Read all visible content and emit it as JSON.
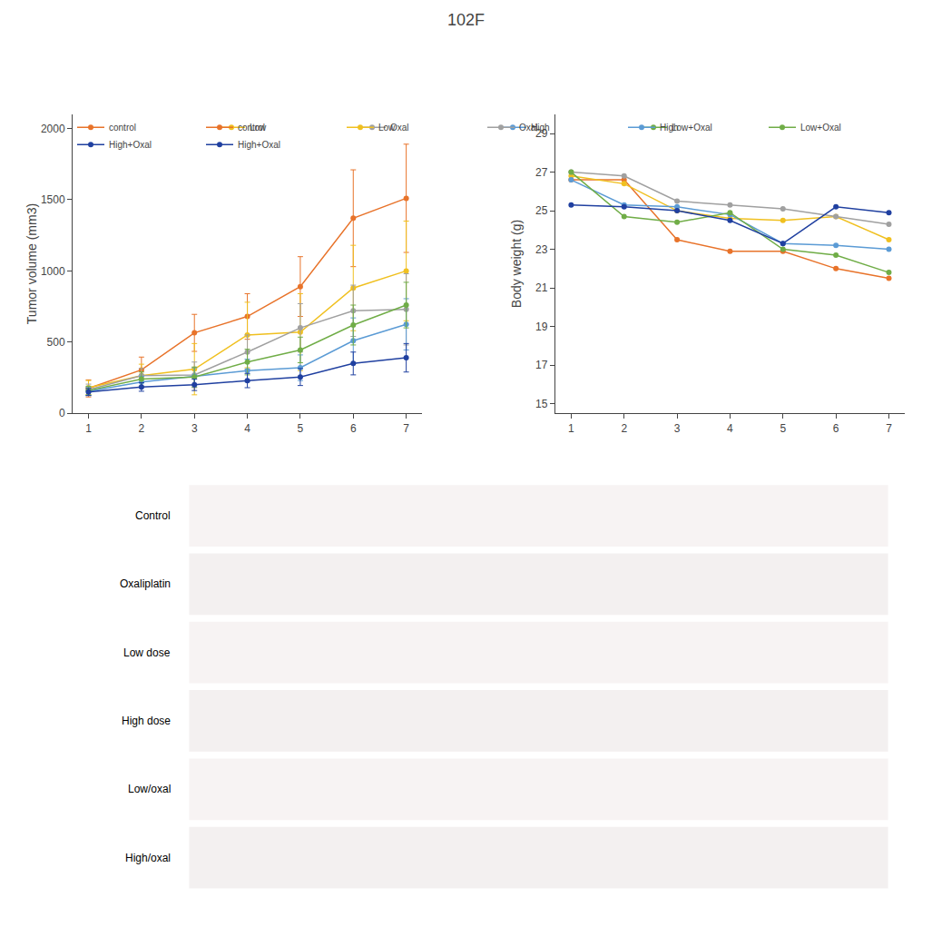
{
  "title": "102F",
  "annotations": [
    "Control",
    "Oxaliplatin",
    "Low dose",
    "High dose",
    "Low/oxal",
    "High/oxal"
  ],
  "chart_data": [
    {
      "type": "line",
      "marker": "circle",
      "grid": false,
      "legend": "upper left",
      "x": [
        1,
        2,
        3,
        4,
        5,
        6,
        7
      ],
      "xlim": [
        0.7,
        7.3
      ],
      "xticks": [
        1,
        2,
        3,
        4,
        5,
        6,
        7
      ],
      "ylabel": "Tumor volume (mm3)",
      "ylim": [
        0,
        2100
      ],
      "yticks": [
        0,
        500,
        1000,
        1500,
        2000
      ],
      "series": [
        {
          "name": "control",
          "color": "#E8732A",
          "values": [
            175,
            305,
            565,
            680,
            890,
            1370,
            1510
          ],
          "errors": [
            60,
            90,
            130,
            160,
            210,
            340,
            380
          ]
        },
        {
          "name": "Low",
          "color": "#F0C020",
          "values": [
            180,
            265,
            310,
            550,
            570,
            880,
            1000
          ],
          "errors": [
            50,
            80,
            180,
            230,
            270,
            300,
            350
          ]
        },
        {
          "name": "Oxal",
          "color": "#A0A0A0",
          "values": [
            165,
            265,
            270,
            430,
            600,
            720,
            730
          ],
          "errors": [
            40,
            50,
            90,
            120,
            170,
            180,
            250
          ]
        },
        {
          "name": "High",
          "color": "#5B9BD5",
          "values": [
            155,
            220,
            260,
            300,
            320,
            510,
            625
          ],
          "errors": [
            30,
            40,
            60,
            80,
            90,
            160,
            180
          ]
        },
        {
          "name": "Low+Oxal",
          "color": "#70AD47",
          "values": [
            160,
            240,
            255,
            360,
            445,
            620,
            760
          ],
          "errors": [
            30,
            50,
            70,
            90,
            90,
            140,
            160
          ]
        },
        {
          "name": "High+Oxal",
          "color": "#2040A0",
          "values": [
            150,
            185,
            200,
            230,
            255,
            350,
            390
          ],
          "errors": [
            25,
            30,
            40,
            50,
            60,
            80,
            100
          ]
        }
      ]
    },
    {
      "type": "line",
      "marker": "circle",
      "grid": false,
      "legend": "upper right",
      "x": [
        1,
        2,
        3,
        4,
        5,
        6,
        7
      ],
      "xlim": [
        0.7,
        7.3
      ],
      "xticks": [
        1,
        2,
        3,
        4,
        5,
        6,
        7
      ],
      "ylabel": "Body weight (g)",
      "ylim": [
        14.5,
        30
      ],
      "yticks": [
        15,
        17,
        19,
        21,
        23,
        25,
        27,
        29
      ],
      "series": [
        {
          "name": "control",
          "color": "#E8732A",
          "values": [
            26.6,
            26.6,
            23.5,
            22.9,
            22.9,
            22.0,
            21.5
          ]
        },
        {
          "name": "Low",
          "color": "#F0C020",
          "values": [
            26.8,
            26.4,
            25.0,
            24.6,
            24.5,
            24.7,
            23.5
          ]
        },
        {
          "name": "Oxal",
          "color": "#A0A0A0",
          "values": [
            27.0,
            26.8,
            25.5,
            25.3,
            25.1,
            24.7,
            24.3
          ]
        },
        {
          "name": "High",
          "color": "#5B9BD5",
          "values": [
            26.6,
            25.3,
            25.2,
            24.8,
            23.3,
            23.2,
            23.0
          ]
        },
        {
          "name": "Low+Oxal",
          "color": "#70AD47",
          "values": [
            27.0,
            24.7,
            24.4,
            24.9,
            23.0,
            22.7,
            21.8
          ]
        },
        {
          "name": "High+Oxal",
          "color": "#2040A0",
          "values": [
            25.3,
            25.2,
            25.0,
            24.5,
            23.3,
            25.2,
            24.9
          ]
        }
      ]
    }
  ]
}
